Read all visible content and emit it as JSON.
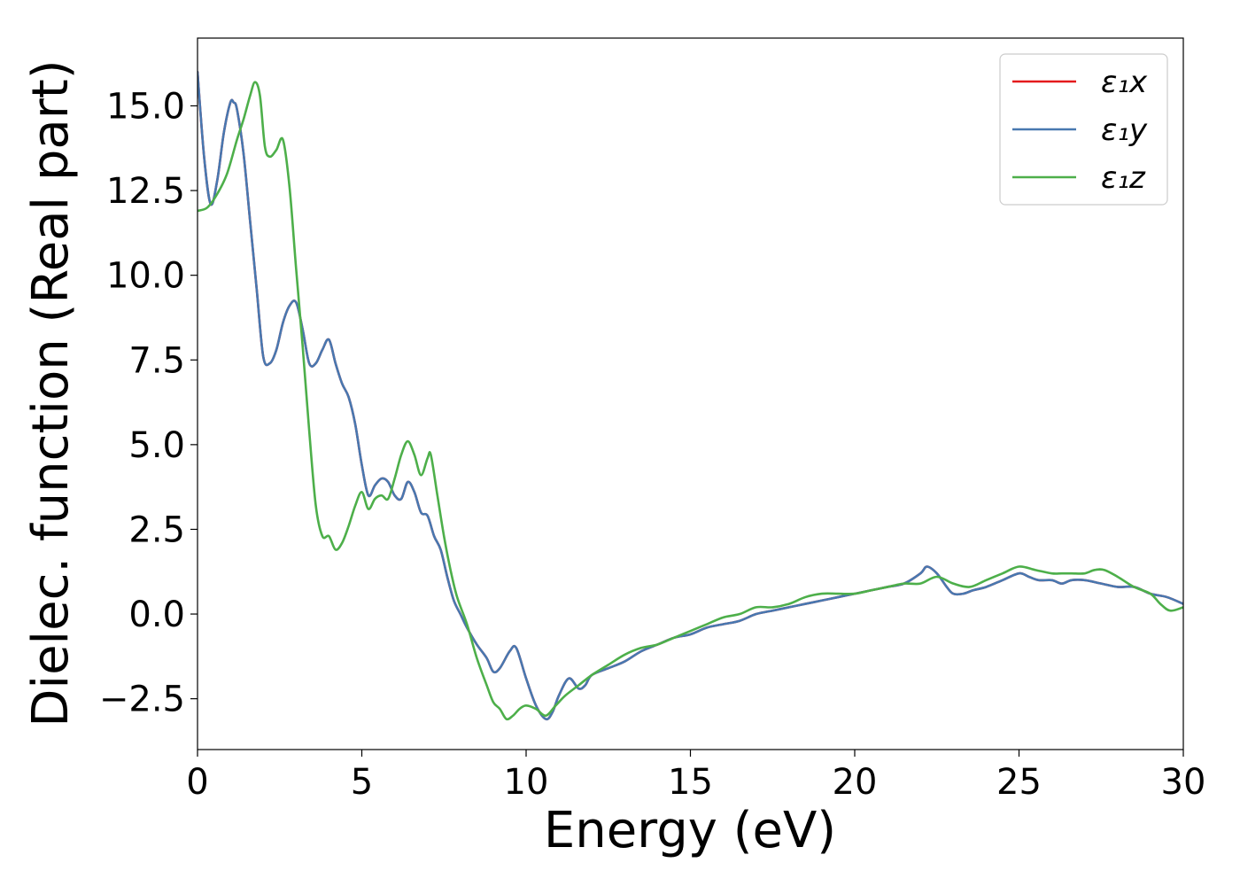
{
  "chart_data": {
    "type": "line",
    "xlabel": "Energy (eV)",
    "ylabel": "Dielec. function (Real part)",
    "xlim": [
      0,
      30
    ],
    "ylim": [
      -4,
      17
    ],
    "xticks": [
      0,
      5,
      10,
      15,
      20,
      25,
      30
    ],
    "xtick_labels": [
      "0",
      "5",
      "10",
      "15",
      "20",
      "25",
      "30"
    ],
    "yticks": [
      -2.5,
      0.0,
      2.5,
      5.0,
      7.5,
      10.0,
      12.5,
      15.0
    ],
    "ytick_labels": [
      "−2.5",
      "0.0",
      "2.5",
      "5.0",
      "7.5",
      "10.0",
      "12.5",
      "15.0"
    ],
    "grid": false,
    "legend_position": "top-right",
    "series": [
      {
        "name": "ε₁x",
        "color": "#e41a1c",
        "x": [
          0,
          0.2,
          0.4,
          0.6,
          0.8,
          1.0,
          1.1,
          1.2,
          1.4,
          1.6,
          1.8,
          2.0,
          2.2,
          2.4,
          2.6,
          2.8,
          3.0,
          3.2,
          3.4,
          3.6,
          3.8,
          4.0,
          4.2,
          4.4,
          4.6,
          4.8,
          5.0,
          5.2,
          5.4,
          5.6,
          5.8,
          6.0,
          6.2,
          6.4,
          6.6,
          6.8,
          7.0,
          7.2,
          7.4,
          7.6,
          7.8,
          8.0,
          8.2,
          8.5,
          8.8,
          9.0,
          9.2,
          9.5,
          9.7,
          10.0,
          10.3,
          10.6,
          10.8,
          11.0,
          11.3,
          11.6,
          11.8,
          12.0,
          12.5,
          13.0,
          13.5,
          14.0,
          14.5,
          15.0,
          15.5,
          16.0,
          16.5,
          17.0,
          17.5,
          18.0,
          18.5,
          19.0,
          19.5,
          20.0,
          20.5,
          21.0,
          21.5,
          22.0,
          22.2,
          22.5,
          22.8,
          23.0,
          23.3,
          23.6,
          24.0,
          24.5,
          25.0,
          25.3,
          25.6,
          26.0,
          26.3,
          26.6,
          27.0,
          27.5,
          28.0,
          28.5,
          29.0,
          29.5,
          30.0
        ],
        "values": [
          16.0,
          13.5,
          12.1,
          12.8,
          14.2,
          15.1,
          15.1,
          14.9,
          13.6,
          11.6,
          9.6,
          7.6,
          7.4,
          7.8,
          8.6,
          9.1,
          9.2,
          8.4,
          7.4,
          7.4,
          7.8,
          8.1,
          7.4,
          6.8,
          6.4,
          5.6,
          4.4,
          3.5,
          3.8,
          4.0,
          3.9,
          3.5,
          3.4,
          3.9,
          3.6,
          3.0,
          2.9,
          2.3,
          1.9,
          1.1,
          0.4,
          0.0,
          -0.4,
          -0.9,
          -1.3,
          -1.7,
          -1.6,
          -1.1,
          -1.0,
          -1.9,
          -2.7,
          -3.1,
          -2.9,
          -2.4,
          -1.9,
          -2.2,
          -2.1,
          -1.8,
          -1.6,
          -1.4,
          -1.1,
          -0.9,
          -0.7,
          -0.6,
          -0.4,
          -0.3,
          -0.2,
          0.0,
          0.1,
          0.2,
          0.3,
          0.4,
          0.5,
          0.6,
          0.7,
          0.8,
          0.9,
          1.2,
          1.4,
          1.2,
          0.8,
          0.6,
          0.6,
          0.7,
          0.8,
          1.0,
          1.2,
          1.1,
          1.0,
          1.0,
          0.9,
          1.0,
          1.0,
          0.9,
          0.8,
          0.8,
          0.6,
          0.5,
          0.3
        ]
      },
      {
        "name": "ε₁y",
        "color": "#4878b0",
        "x": [
          0,
          0.2,
          0.4,
          0.6,
          0.8,
          1.0,
          1.1,
          1.2,
          1.4,
          1.6,
          1.8,
          2.0,
          2.2,
          2.4,
          2.6,
          2.8,
          3.0,
          3.2,
          3.4,
          3.6,
          3.8,
          4.0,
          4.2,
          4.4,
          4.6,
          4.8,
          5.0,
          5.2,
          5.4,
          5.6,
          5.8,
          6.0,
          6.2,
          6.4,
          6.6,
          6.8,
          7.0,
          7.2,
          7.4,
          7.6,
          7.8,
          8.0,
          8.2,
          8.5,
          8.8,
          9.0,
          9.2,
          9.5,
          9.7,
          10.0,
          10.3,
          10.6,
          10.8,
          11.0,
          11.3,
          11.6,
          11.8,
          12.0,
          12.5,
          13.0,
          13.5,
          14.0,
          14.5,
          15.0,
          15.5,
          16.0,
          16.5,
          17.0,
          17.5,
          18.0,
          18.5,
          19.0,
          19.5,
          20.0,
          20.5,
          21.0,
          21.5,
          22.0,
          22.2,
          22.5,
          22.8,
          23.0,
          23.3,
          23.6,
          24.0,
          24.5,
          25.0,
          25.3,
          25.6,
          26.0,
          26.3,
          26.6,
          27.0,
          27.5,
          28.0,
          28.5,
          29.0,
          29.5,
          30.0
        ],
        "values": [
          16.0,
          13.5,
          12.1,
          12.8,
          14.2,
          15.1,
          15.1,
          14.9,
          13.6,
          11.6,
          9.6,
          7.6,
          7.4,
          7.8,
          8.6,
          9.1,
          9.2,
          8.4,
          7.4,
          7.4,
          7.8,
          8.1,
          7.4,
          6.8,
          6.4,
          5.6,
          4.4,
          3.5,
          3.8,
          4.0,
          3.9,
          3.5,
          3.4,
          3.9,
          3.6,
          3.0,
          2.9,
          2.3,
          1.9,
          1.1,
          0.4,
          0.0,
          -0.4,
          -0.9,
          -1.3,
          -1.7,
          -1.6,
          -1.1,
          -1.0,
          -1.9,
          -2.7,
          -3.1,
          -2.9,
          -2.4,
          -1.9,
          -2.2,
          -2.1,
          -1.8,
          -1.6,
          -1.4,
          -1.1,
          -0.9,
          -0.7,
          -0.6,
          -0.4,
          -0.3,
          -0.2,
          0.0,
          0.1,
          0.2,
          0.3,
          0.4,
          0.5,
          0.6,
          0.7,
          0.8,
          0.9,
          1.2,
          1.4,
          1.2,
          0.8,
          0.6,
          0.6,
          0.7,
          0.8,
          1.0,
          1.2,
          1.1,
          1.0,
          1.0,
          0.9,
          1.0,
          1.0,
          0.9,
          0.8,
          0.8,
          0.6,
          0.5,
          0.3
        ]
      },
      {
        "name": "ε₁z",
        "color": "#4daf4a",
        "x": [
          0,
          0.3,
          0.6,
          0.9,
          1.2,
          1.4,
          1.6,
          1.75,
          1.9,
          2.05,
          2.2,
          2.4,
          2.6,
          2.8,
          3.0,
          3.2,
          3.4,
          3.6,
          3.8,
          4.0,
          4.2,
          4.4,
          4.6,
          4.8,
          5.0,
          5.2,
          5.4,
          5.6,
          5.8,
          6.0,
          6.2,
          6.4,
          6.6,
          6.8,
          7.0,
          7.1,
          7.3,
          7.5,
          7.7,
          7.9,
          8.2,
          8.5,
          8.8,
          9.0,
          9.2,
          9.4,
          9.6,
          9.8,
          10.0,
          10.3,
          10.6,
          10.9,
          11.2,
          11.6,
          12.0,
          12.5,
          13.0,
          13.5,
          14.0,
          14.5,
          15.0,
          15.5,
          16.0,
          16.5,
          17.0,
          17.5,
          18.0,
          18.5,
          19.0,
          19.5,
          20.0,
          20.5,
          21.0,
          21.5,
          22.0,
          22.5,
          23.0,
          23.5,
          24.0,
          24.5,
          25.0,
          25.5,
          26.0,
          26.3,
          26.6,
          27.0,
          27.3,
          27.6,
          28.0,
          28.5,
          29.0,
          29.3,
          29.6,
          30.0
        ],
        "values": [
          11.9,
          12.0,
          12.4,
          13.0,
          14.0,
          14.6,
          15.3,
          15.7,
          15.3,
          13.8,
          13.5,
          13.7,
          14.0,
          12.6,
          10.2,
          7.9,
          5.4,
          3.2,
          2.3,
          2.3,
          1.9,
          2.1,
          2.6,
          3.2,
          3.6,
          3.1,
          3.4,
          3.5,
          3.4,
          4.0,
          4.7,
          5.1,
          4.7,
          4.1,
          4.6,
          4.7,
          3.5,
          2.3,
          1.3,
          0.5,
          -0.3,
          -1.3,
          -2.1,
          -2.6,
          -2.8,
          -3.1,
          -3.0,
          -2.8,
          -2.7,
          -2.8,
          -3.0,
          -2.7,
          -2.4,
          -2.1,
          -1.8,
          -1.5,
          -1.2,
          -1.0,
          -0.9,
          -0.7,
          -0.5,
          -0.3,
          -0.1,
          0.0,
          0.2,
          0.2,
          0.3,
          0.5,
          0.6,
          0.6,
          0.6,
          0.7,
          0.8,
          0.9,
          0.9,
          1.1,
          0.9,
          0.8,
          1.0,
          1.2,
          1.4,
          1.3,
          1.2,
          1.2,
          1.2,
          1.2,
          1.3,
          1.3,
          1.1,
          0.8,
          0.6,
          0.3,
          0.1,
          0.2
        ]
      }
    ]
  }
}
